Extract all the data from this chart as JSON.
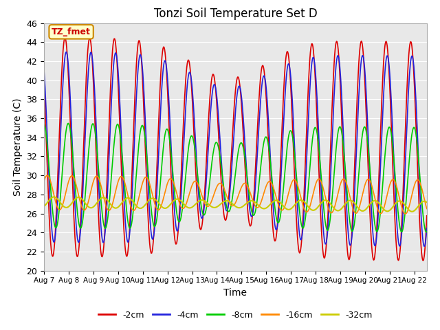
{
  "title": "Tonzi Soil Temperature Set D",
  "xlabel": "Time",
  "ylabel": "Soil Temperature (C)",
  "ylim": [
    20,
    46
  ],
  "xlim": [
    0,
    15.5
  ],
  "x_tick_labels": [
    "Aug 7",
    "Aug 8",
    "Aug 9",
    "Aug 10",
    "Aug 11",
    "Aug 12",
    "Aug 13",
    "Aug 14",
    "Aug 15",
    "Aug 16",
    "Aug 17",
    "Aug 18",
    "Aug 19",
    "Aug 20",
    "Aug 21",
    "Aug 22"
  ],
  "legend_labels": [
    "-2cm",
    "-4cm",
    "-8cm",
    "-16cm",
    "-32cm"
  ],
  "legend_colors": [
    "#dd0000",
    "#2222dd",
    "#00cc00",
    "#ff8800",
    "#cccc00"
  ],
  "line_widths": [
    1.2,
    1.2,
    1.2,
    1.2,
    1.5
  ],
  "annotation_text": "TZ_fmet",
  "annotation_bg": "#ffffcc",
  "annotation_border": "#cc8800",
  "fig_bg_color": "#ffffff",
  "plot_bg_color": "#e8e8e8",
  "grid_color": "#ffffff",
  "n_days": 15.5,
  "points_per_day": 48,
  "series_params": [
    {
      "amp": 11.5,
      "mean": 33.0,
      "phase_shift": 0.0,
      "label": "depth_2cm"
    },
    {
      "amp": 10.0,
      "mean": 33.0,
      "phase_shift": 0.05,
      "label": "depth_4cm"
    },
    {
      "amp": 5.5,
      "mean": 30.0,
      "phase_shift": 0.13,
      "label": "depth_8cm"
    },
    {
      "amp": 1.8,
      "mean": 28.2,
      "phase_shift": 0.28,
      "label": "depth_16cm"
    },
    {
      "amp": 0.55,
      "mean": 27.2,
      "phase_shift": 0.55,
      "label": "depth_32cm"
    }
  ]
}
